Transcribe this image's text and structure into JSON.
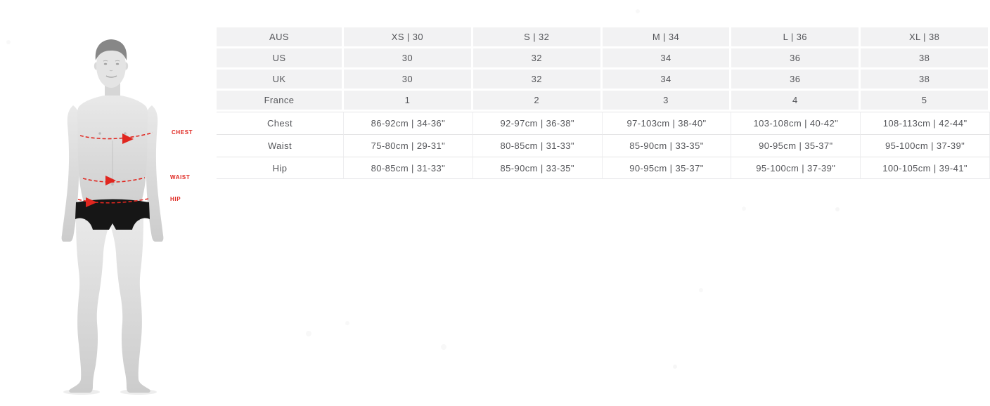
{
  "colors": {
    "accent_red": "#e0261f",
    "table_row_gray": "#f2f2f3",
    "table_text": "#55565a"
  },
  "figure": {
    "description": "grayscale standing male model in black swim trunks with measurement guides",
    "labels": [
      {
        "id": "chest",
        "text": "CHEST"
      },
      {
        "id": "waist",
        "text": "WAIST"
      },
      {
        "id": "hip",
        "text": "HIP"
      }
    ]
  },
  "size_table": {
    "header_rows": [
      {
        "label": "AUS",
        "values": [
          "XS | 30",
          "S | 32",
          "M | 34",
          "L | 36",
          "XL | 38"
        ]
      },
      {
        "label": "US",
        "values": [
          "30",
          "32",
          "34",
          "36",
          "38"
        ]
      },
      {
        "label": "UK",
        "values": [
          "30",
          "32",
          "34",
          "36",
          "38"
        ]
      },
      {
        "label": "France",
        "values": [
          "1",
          "2",
          "3",
          "4",
          "5"
        ]
      }
    ],
    "measurement_rows": [
      {
        "label": "Chest",
        "values": [
          "86-92cm | 34-36\"",
          "92-97cm | 36-38\"",
          "97-103cm | 38-40\"",
          "103-108cm | 40-42\"",
          "108-113cm | 42-44\""
        ]
      },
      {
        "label": "Waist",
        "values": [
          "75-80cm | 29-31\"",
          "80-85cm | 31-33\"",
          "85-90cm | 33-35\"",
          "90-95cm | 35-37\"",
          "95-100cm | 37-39\""
        ]
      },
      {
        "label": "Hip",
        "values": [
          "80-85cm | 31-33\"",
          "85-90cm | 33-35\"",
          "90-95cm | 35-37\"",
          "95-100cm | 37-39\"",
          "100-105cm | 39-41\""
        ]
      }
    ]
  }
}
